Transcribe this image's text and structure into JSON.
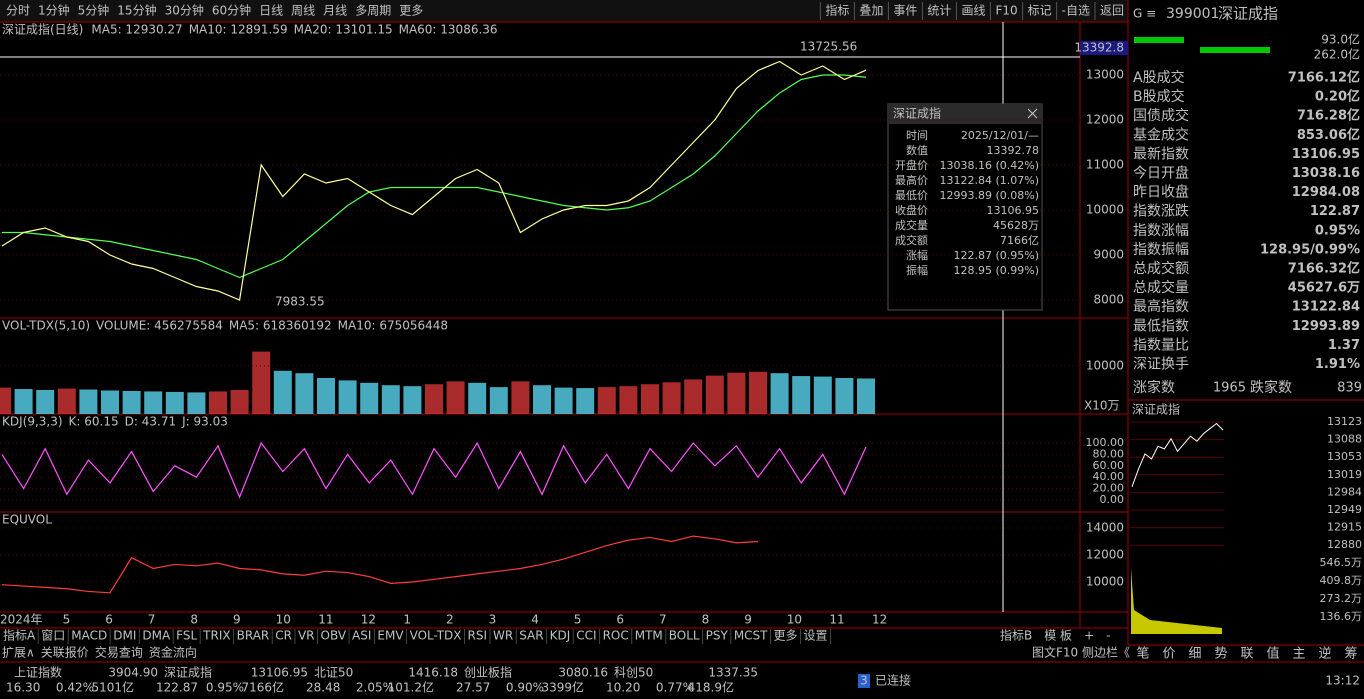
{
  "toolbar": {
    "periods": [
      "分时",
      "1分钟",
      "5分钟",
      "15分钟",
      "30分钟",
      "60分钟",
      "日线",
      "周线",
      "月线",
      "多周期",
      "更多"
    ],
    "tools": [
      "指标",
      "叠加",
      "事件",
      "统计",
      "画线",
      "F10",
      "标记",
      "-自选",
      "返回"
    ]
  },
  "main": {
    "title": "深证成指(日线)",
    "ma": [
      "MA5: 12930.27",
      "MA10: 12891.59",
      "MA20: 13101.15",
      "MA60: 13086.36"
    ],
    "current": "13392.8",
    "high_label": "13725.56",
    "low_label": "7983.55",
    "yticks": [
      13000,
      12000,
      11000,
      10000,
      9000,
      8000
    ],
    "close": [
      9200,
      9500,
      9600,
      9400,
      9300,
      9000,
      8800,
      8700,
      8500,
      8300,
      8200,
      8000,
      11000,
      10300,
      10800,
      10600,
      10700,
      10400,
      10100,
      9900,
      10300,
      10700,
      10900,
      10600,
      9500,
      9800,
      10000,
      10100,
      10100,
      10200,
      10500,
      11000,
      11500,
      12000,
      12700,
      13100,
      13300,
      13000,
      13200,
      12900,
      13107
    ],
    "ma60": [
      9500,
      9500,
      9450,
      9400,
      9350,
      9300,
      9200,
      9100,
      9000,
      8900,
      8700,
      8500,
      8700,
      8900,
      9300,
      9700,
      10100,
      10400,
      10500,
      10500,
      10500,
      10500,
      10500,
      10400,
      10300,
      10200,
      10100,
      10050,
      10000,
      10050,
      10200,
      10500,
      10800,
      11200,
      11700,
      12200,
      12600,
      12900,
      13000,
      13000,
      12950
    ]
  },
  "tooltip": {
    "title": "深证成指",
    "rows": [
      [
        "时间",
        "2025/12/01/—"
      ],
      [
        "数值",
        "13392.78"
      ],
      [
        "开盘价",
        "13038.16 (0.42%)"
      ],
      [
        "最高价",
        "13122.84 (1.07%)"
      ],
      [
        "最低价",
        "12993.89 (0.08%)"
      ],
      [
        "收盘价",
        "13106.95"
      ],
      [
        "成交量",
        "45628万"
      ],
      [
        "成交额",
        "7166亿"
      ],
      [
        "涨幅",
        "122.87 (0.95%)"
      ],
      [
        "振幅",
        "128.95 (0.99%)"
      ]
    ]
  },
  "volume": {
    "labels": [
      "VOL-TDX(5,10)",
      "VOLUME: 456275584",
      "MA5: 618360192",
      "MA10: 675056448"
    ],
    "yticks": [
      10000
    ],
    "unit": "X10万",
    "values": [
      5500,
      5200,
      5000,
      5300,
      5100,
      4900,
      4800,
      4700,
      4600,
      4500,
      4700,
      5000,
      13000,
      9000,
      8500,
      7500,
      7000,
      6500,
      6000,
      5800,
      6200,
      6800,
      6500,
      5600,
      6800,
      6000,
      5500,
      5400,
      5600,
      5800,
      6200,
      6600,
      7200,
      8000,
      8600,
      8800,
      8500,
      7900,
      7800,
      7500,
      7400
    ]
  },
  "kdj": {
    "labels": [
      "KDJ(9,3,3)",
      "K: 60.15",
      "D: 43.71",
      "J: 93.03"
    ],
    "yticks": [
      {
        "value": 100,
        "label": "100.00"
      },
      {
        "value": 80,
        "label": "80.00"
      },
      {
        "value": 60,
        "label": "60.00"
      },
      {
        "value": 40,
        "label": "40.00"
      },
      {
        "value": 20,
        "label": "20.00"
      },
      {
        "value": 0,
        "label": "0.00"
      }
    ],
    "j": [
      80,
      20,
      90,
      10,
      70,
      30,
      85,
      15,
      60,
      40,
      95,
      5,
      100,
      50,
      90,
      20,
      80,
      30,
      70,
      10,
      90,
      40,
      100,
      20,
      85,
      10,
      95,
      30,
      80,
      20,
      90,
      50,
      100,
      60,
      95,
      40,
      90,
      30,
      80,
      10,
      93
    ]
  },
  "equvol": {
    "label": "EQUVOL",
    "yticks": [
      14000,
      12000,
      10000
    ],
    "values": [
      9800,
      9700,
      9600,
      9500,
      9300,
      9200,
      11800,
      11000,
      11300,
      11200,
      11400,
      11000,
      10900,
      10600,
      10500,
      10800,
      10700,
      10400,
      9900,
      10000,
      10200,
      10400,
      10600,
      10800,
      11000,
      11300,
      11700,
      12200,
      12700,
      13100,
      13300,
      13000,
      13400,
      13200,
      12900,
      13000
    ]
  },
  "time_axis": [
    "2024年",
    "5",
    "6",
    "7",
    "8",
    "9",
    "10",
    "11",
    "12",
    "1",
    "2",
    "3",
    "4",
    "5",
    "6",
    "7",
    "8",
    "9",
    "10",
    "11",
    "12"
  ],
  "tabs": [
    "指标A",
    "窗口",
    "MACD",
    "DMI",
    "DMA",
    "FSL",
    "TRIX",
    "BRAR",
    "CR",
    "VR",
    "OBV",
    "ASI",
    "EMV",
    "VOL-TDX",
    "RSI",
    "WR",
    "SAR",
    "KDJ",
    "CCI",
    "ROC",
    "MTM",
    "BOLL",
    "PSY",
    "MCST",
    "更多",
    "设置"
  ],
  "tabs_right": [
    "指标B",
    "模 板",
    "+",
    "-"
  ],
  "subtabs": [
    "扩展∧",
    "关联报价",
    "交易查询",
    "资金流向"
  ],
  "subtabs_right": [
    "图文F10",
    "侧边栏《"
  ],
  "side": {
    "code": "399001",
    "name": "深证成指",
    "bar_pct": [
      "93.0亿",
      "262.0亿"
    ],
    "rows": [
      [
        "A股成交",
        "7166.12亿",
        "#ffff54"
      ],
      [
        "B股成交",
        "0.20亿",
        "#ffff54"
      ],
      [
        "国债成交",
        "716.28亿",
        "#ffff54"
      ],
      [
        "基金成交",
        "853.06亿",
        "#ffff54"
      ],
      [
        "最新指数",
        "13106.95",
        "#ff3232"
      ],
      [
        "今日开盘",
        "13038.16",
        "#ff3232"
      ],
      [
        "昨日收盘",
        "12984.08",
        "#ffffff"
      ],
      [
        "指数涨跌",
        "122.87",
        "#ff3232"
      ],
      [
        "指数涨幅",
        "0.95%",
        "#ff3232"
      ],
      [
        "指数振幅",
        "128.95/0.99%",
        "#ffffff"
      ],
      [
        "总成交额",
        "7166.32亿",
        "#ffff54"
      ],
      [
        "总成交量",
        "45627.6万",
        "#ffff54"
      ],
      [
        "最高指数",
        "13122.84",
        "#ff3232"
      ],
      [
        "最低指数",
        "12993.89",
        "#ff3232"
      ],
      [
        "指数量比",
        "1.37",
        "#ff3232"
      ],
      [
        "深证换手",
        "1.91%",
        "#ffffff"
      ]
    ],
    "updown": [
      "涨家数",
      "1965",
      "跌家数",
      "839"
    ],
    "mini_title": "深证成指",
    "mini_ticks": [
      "13123",
      "13088",
      "13053",
      "13019",
      "12984",
      "12949",
      "12915",
      "12880"
    ],
    "mini_vol_ticks": [
      "546.5万",
      "409.8万",
      "273.2万",
      "136.6万"
    ],
    "mini_prices": [
      12995,
      13030,
      13060,
      13050,
      13075,
      13070,
      13090,
      13065,
      13080,
      13095,
      13085,
      13100,
      13110,
      13120,
      13107
    ],
    "mini_ylim": [
      12880,
      13123
    ],
    "bottom_tabs": [
      "笔",
      "价",
      "细",
      "势",
      "联",
      "值",
      "主",
      "逆",
      "筹"
    ]
  },
  "status": [
    {
      "name": "上证指数",
      "value": "3904.90",
      "chg": "16.30",
      "pct": "0.42%",
      "amt": "5101亿"
    },
    {
      "name": "深证成指",
      "value": "13106.95",
      "chg": "122.87",
      "pct": "0.95%",
      "amt": "7166亿"
    },
    {
      "name": "北证50",
      "value": "1416.18",
      "chg": "28.48",
      "pct": "2.05%",
      "amt": "101.2亿"
    },
    {
      "name": "创业板指",
      "value": "3080.16",
      "chg": "27.57",
      "pct": "0.90%",
      "amt": "3399亿"
    },
    {
      "name": "科创50",
      "value": "1337.35",
      "chg": "10.20",
      "pct": "0.77%",
      "amt": "418.9亿"
    }
  ],
  "conn": {
    "count": "3",
    "text": "已连接",
    "time": "13:12"
  }
}
